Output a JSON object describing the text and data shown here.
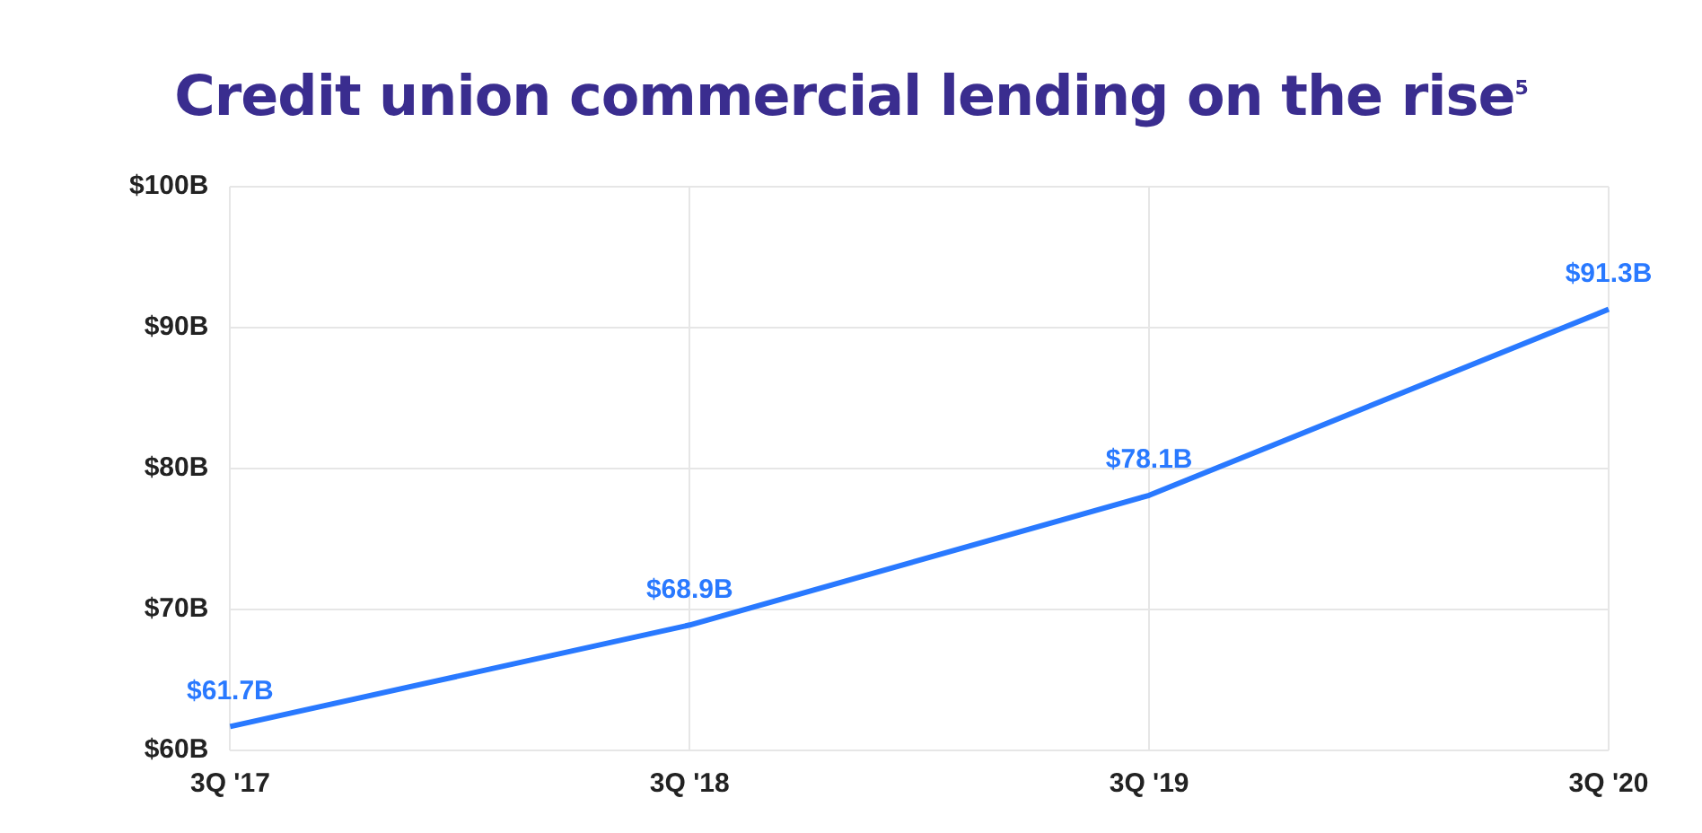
{
  "chart_data": {
    "type": "line",
    "title": "Credit union commercial lending on the rise$^{5}$",
    "categories": [
      "3Q '17",
      "3Q '18",
      "3Q '19",
      "3Q '20"
    ],
    "values": [
      61.7,
      68.9,
      78.1,
      91.3
    ],
    "value_labels": [
      "$61.7B",
      "$68.9B",
      "$78.1B",
      "$91.3B"
    ],
    "color": "#2979ff",
    "ylim": [
      60,
      100
    ],
    "yticks": [
      {
        "value": 60,
        "label": "$60B"
      },
      {
        "value": 70,
        "label": "$70B"
      },
      {
        "value": 80,
        "label": "$80B"
      },
      {
        "value": 90,
        "label": "$90B"
      },
      {
        "value": 100,
        "label": "$100B"
      }
    ],
    "grid": true,
    "marker": "none"
  }
}
